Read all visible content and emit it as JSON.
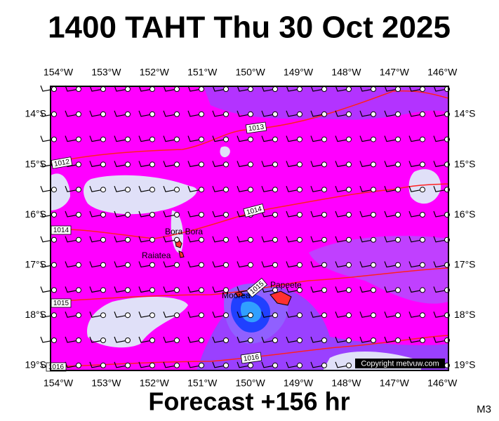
{
  "title": "1400 TAHT Thu 30 Oct 2025",
  "footer": "Forecast +156 hr",
  "corner_label": "M3",
  "copyright": "Copyright metvuw.com",
  "lon_labels": [
    "154°W",
    "153°W",
    "152°W",
    "151°W",
    "150°W",
    "149°W",
    "148°W",
    "147°W",
    "146°W"
  ],
  "lat_labels": [
    "14°S",
    "15°S",
    "16°S",
    "17°S",
    "18°S",
    "19°S"
  ],
  "places": [
    "Bora Bora",
    "Raiatea",
    "Moorea",
    "Papeete"
  ],
  "isobar_labels": [
    "1012",
    "1013",
    "1014",
    "1014",
    "1015",
    "1015",
    "1016",
    "1016"
  ]
}
